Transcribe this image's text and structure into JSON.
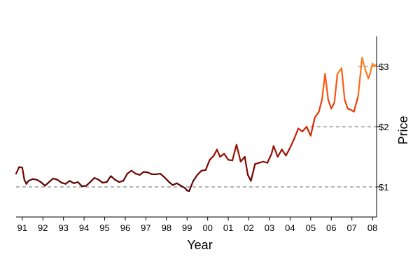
{
  "chart_data": {
    "type": "line",
    "xlabel": "Year",
    "ylabel": "Price",
    "xlim": [
      1990.7,
      2008.2
    ],
    "ylim": [
      0.5,
      3.5
    ],
    "x_ticks": [
      1991,
      1992,
      1993,
      1994,
      1995,
      1996,
      1997,
      1998,
      1999,
      2000,
      2001,
      2002,
      2003,
      2004,
      2005,
      2006,
      2007,
      2008
    ],
    "x_tick_labels": [
      "91",
      "92",
      "93",
      "94",
      "95",
      "96",
      "97",
      "98",
      "99",
      "00",
      "01",
      "02",
      "03",
      "04",
      "05",
      "06",
      "07",
      "08"
    ],
    "y_ticks": [
      1,
      2,
      3
    ],
    "y_tick_labels": [
      "$1",
      "$2",
      "$3"
    ],
    "y_axis_position": "right",
    "reference_lines": [
      {
        "y": 1,
        "x_from": 1990.7,
        "x_to": 2008.2,
        "style": "dashed"
      },
      {
        "y": 2,
        "x_from": 2005.0,
        "x_to": 2008.2,
        "style": "dashed"
      },
      {
        "y": 3,
        "x_from": 2007.3,
        "x_to": 2008.2,
        "style": "dashed"
      }
    ],
    "color_gradient": [
      "#4a0000",
      "#8b0a00",
      "#d42a00",
      "#ff4a10",
      "#ff9a20"
    ],
    "series": [
      {
        "x": [
          1990.7,
          1990.85,
          1991.0,
          1991.1,
          1991.2,
          1991.3,
          1991.5,
          1991.7,
          1991.9,
          1992.1,
          1992.3,
          1992.5,
          1992.7,
          1992.9,
          1993.1,
          1993.3,
          1993.5,
          1993.7,
          1993.9,
          1994.1,
          1994.3,
          1994.5,
          1994.7,
          1994.9,
          1995.1,
          1995.3,
          1995.5,
          1995.7,
          1995.9,
          1996.1,
          1996.3,
          1996.5,
          1996.7,
          1996.9,
          1997.1,
          1997.3,
          1997.5,
          1997.7,
          1997.9,
          1998.1,
          1998.3,
          1998.5,
          1998.7,
          1998.9,
          1999.0,
          1999.1,
          1999.3,
          1999.5,
          1999.7,
          1999.9,
          2000.1,
          2000.3,
          2000.45,
          2000.6,
          2000.8,
          2001.0,
          2001.2,
          2001.4,
          2001.6,
          2001.8,
          2001.95,
          2002.1,
          2002.3,
          2002.5,
          2002.7,
          2002.9,
          2003.1,
          2003.2,
          2003.4,
          2003.6,
          2003.8,
          2004.0,
          2004.2,
          2004.4,
          2004.6,
          2004.8,
          2005.0,
          2005.2,
          2005.4,
          2005.55,
          2005.7,
          2005.85,
          2006.0,
          2006.15,
          2006.3,
          2006.5,
          2006.65,
          2006.8,
          2006.95,
          2007.1,
          2007.3,
          2007.5,
          2007.65,
          2007.8,
          2007.9,
          2008.0,
          2008.1,
          2008.2
        ],
        "y": [
          1.22,
          1.33,
          1.32,
          1.12,
          1.05,
          1.1,
          1.13,
          1.12,
          1.08,
          1.02,
          1.08,
          1.14,
          1.12,
          1.07,
          1.05,
          1.1,
          1.06,
          1.08,
          1.01,
          1.02,
          1.08,
          1.15,
          1.12,
          1.07,
          1.08,
          1.18,
          1.12,
          1.08,
          1.1,
          1.22,
          1.27,
          1.22,
          1.2,
          1.25,
          1.24,
          1.21,
          1.21,
          1.22,
          1.16,
          1.09,
          1.03,
          1.06,
          1.02,
          0.98,
          0.94,
          0.93,
          1.1,
          1.2,
          1.27,
          1.28,
          1.45,
          1.52,
          1.62,
          1.5,
          1.55,
          1.45,
          1.44,
          1.7,
          1.42,
          1.5,
          1.2,
          1.1,
          1.38,
          1.4,
          1.42,
          1.4,
          1.55,
          1.68,
          1.5,
          1.62,
          1.52,
          1.65,
          1.8,
          1.97,
          1.92,
          2.0,
          1.85,
          2.15,
          2.25,
          2.45,
          2.88,
          2.45,
          2.3,
          2.4,
          2.88,
          2.97,
          2.45,
          2.3,
          2.28,
          2.25,
          2.5,
          3.15,
          2.95,
          2.8,
          2.9,
          3.05,
          3.0,
          3.04
        ]
      }
    ]
  }
}
